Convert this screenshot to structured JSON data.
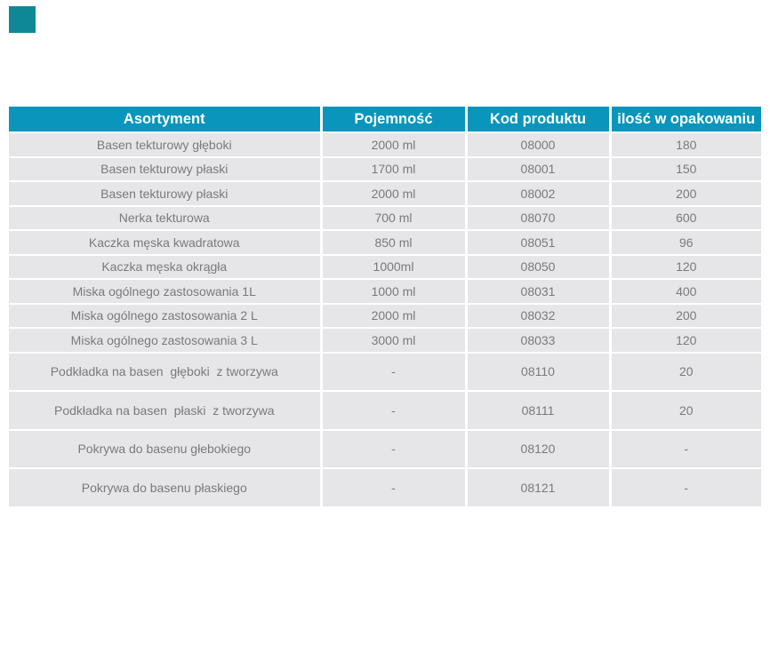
{
  "page": {
    "background": "#ffffff"
  },
  "decor": {
    "corner_square_color": "#0e8796"
  },
  "table": {
    "colors": {
      "header_bg": "#0a95bc",
      "header_text": "#ffffff",
      "row_bg": "#e6e6e8",
      "row_text": "#7a7a7d",
      "divider": "#ffffff"
    },
    "columns": [
      "Asortyment",
      "Pojemność",
      "Kod produktu",
      "ilość w opakowaniu"
    ],
    "rows": [
      {
        "tall": false,
        "cells": [
          "Basen tekturowy głęboki",
          "2000 ml",
          "08000",
          "180"
        ]
      },
      {
        "tall": false,
        "cells": [
          "Basen tekturowy płaski",
          "1700 ml",
          "08001",
          "150"
        ]
      },
      {
        "tall": false,
        "cells": [
          "Basen tekturowy płaski",
          "2000 ml",
          "08002",
          "200"
        ]
      },
      {
        "tall": false,
        "cells": [
          "Nerka tekturowa",
          "700 ml",
          "08070",
          "600"
        ]
      },
      {
        "tall": false,
        "cells": [
          "Kaczka męska kwadratowa",
          "850 ml",
          "08051",
          "96"
        ]
      },
      {
        "tall": false,
        "cells": [
          "Kaczka męska okrągła",
          "1000ml",
          "08050",
          "120"
        ]
      },
      {
        "tall": false,
        "cells": [
          "Miska ogólnego zastosowania 1L",
          "1000 ml",
          "08031",
          "400"
        ]
      },
      {
        "tall": false,
        "cells": [
          "Miska ogólnego zastosowania 2 L",
          "2000 ml",
          "08032",
          "200"
        ]
      },
      {
        "tall": false,
        "cells": [
          "Miska ogólnego zastosowania 3 L",
          "3000 ml",
          "08033",
          "120"
        ]
      },
      {
        "tall": true,
        "cells": [
          "Podkładka na basen  głęboki  z tworzywa",
          "-",
          "08110",
          "20"
        ]
      },
      {
        "tall": true,
        "cells": [
          "Podkładka na basen  płaski  z tworzywa",
          "-",
          "08111",
          "20"
        ]
      },
      {
        "tall": true,
        "cells": [
          "Pokrywa do basenu głebokiego",
          "-",
          "08120",
          "-"
        ]
      },
      {
        "tall": true,
        "cells": [
          "Pokrywa do basenu płaskiego",
          "-",
          "08121",
          "-"
        ]
      }
    ]
  }
}
